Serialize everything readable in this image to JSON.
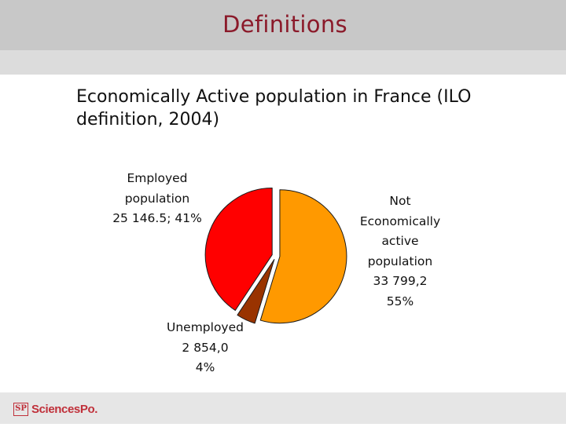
{
  "header": {
    "title": "Definitions"
  },
  "subtitle": "Economically Active population in France  (ILO definition, 2004)",
  "footer": {
    "logo_text": "SciencesPo."
  },
  "colors": {
    "title": "#8b1a2a",
    "employed": "#ff0000",
    "unemployed": "#993300",
    "inactive": "#ff9900",
    "logo": "#c0303a"
  },
  "chart_data": {
    "type": "pie",
    "exploded": true,
    "slices": [
      {
        "name": "Not Economically active population",
        "value": 33799.2,
        "percent": 55,
        "color": "#ff9900",
        "label_lines": [
          "Not",
          "Economically",
          "active",
          "population",
          "33 799,2",
          "55%"
        ]
      },
      {
        "name": "Unemployed",
        "value": 2854.0,
        "percent": 4,
        "color": "#993300",
        "label_lines": [
          "Unemployed",
          "2 854,0",
          "4%"
        ]
      },
      {
        "name": "Employed population",
        "value": 25146.5,
        "percent": 41,
        "color": "#ff0000",
        "label_lines": [
          "Employed",
          "population",
          "25 146.5; 41%"
        ]
      }
    ]
  }
}
